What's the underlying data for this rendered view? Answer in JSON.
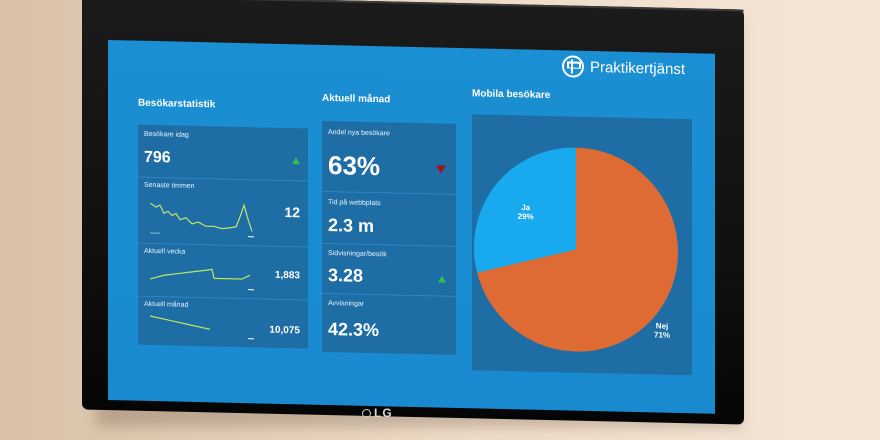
{
  "tv": {
    "brand_logo": "LG"
  },
  "header": {
    "brand": "Praktikertjänst",
    "brand_icon": "praktikertjanst-logo-icon"
  },
  "sections": {
    "stats_title": "Besökarstatistik",
    "month_title": "Aktuell månad",
    "mobile_title": "Mobila besökare"
  },
  "stats": [
    {
      "label": "Besökare idag",
      "value": "796",
      "trend": "up"
    },
    {
      "label": "Senaste timmen",
      "value": "12"
    },
    {
      "label": "Aktuell vecka",
      "value": "1,883"
    },
    {
      "label": "Aktuell månad",
      "value": "10,075"
    }
  ],
  "month": [
    {
      "label": "Andel nya besökare",
      "value": "63%",
      "trend": "down"
    },
    {
      "label": "Tid på webbplats",
      "value": "2.3 m"
    },
    {
      "label": "Sidvisningar/besök",
      "value": "3.28",
      "trend": "up"
    },
    {
      "label": "Avvisningar",
      "value": "42.3%"
    }
  ],
  "colors": {
    "screen": "#1a8ad0",
    "panel": "#1e6da5",
    "pie_ja": "#19a9ee",
    "pie_nej": "#de6b34",
    "trend_up": "#2fbf4f",
    "trend_down": "#a1121a",
    "spark_day": "#bfe36a",
    "spark_week": "#b9e85a"
  },
  "chart_data": {
    "type": "pie",
    "categories": [
      "Ja",
      "Nej"
    ],
    "values": [
      29,
      71
    ],
    "labels": [
      "29%",
      "71%"
    ]
  }
}
